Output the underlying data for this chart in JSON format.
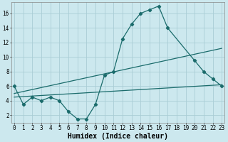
{
  "xlabel": "Humidex (Indice chaleur)",
  "bg_color": "#cce8ee",
  "grid_color": "#aacdd5",
  "line_color": "#1a6b6b",
  "line1_x": [
    0,
    1,
    2,
    3,
    4,
    5,
    6,
    7,
    8,
    9,
    10,
    11,
    12,
    13,
    14,
    15,
    16,
    17,
    20,
    21,
    22,
    23
  ],
  "line1_y": [
    6,
    3.5,
    4.5,
    4,
    4.5,
    4,
    2.5,
    1.5,
    1.5,
    3.5,
    7.5,
    8,
    12.5,
    14.5,
    16,
    16.5,
    17,
    14,
    9.5,
    8,
    7,
    6
  ],
  "line2_x": [
    0,
    23
  ],
  "line2_y": [
    4.5,
    6.2
  ],
  "line3_x": [
    0,
    23
  ],
  "line3_y": [
    5.0,
    11.2
  ],
  "xlim": [
    -0.3,
    23.3
  ],
  "ylim": [
    1.0,
    17.5
  ],
  "yticks": [
    2,
    4,
    6,
    8,
    10,
    12,
    14,
    16
  ],
  "xticks": [
    0,
    1,
    2,
    3,
    4,
    5,
    6,
    7,
    8,
    9,
    10,
    11,
    12,
    13,
    14,
    15,
    16,
    17,
    18,
    19,
    20,
    21,
    22,
    23
  ],
  "title_fontsize": 7.5,
  "label_fontsize": 7,
  "tick_fontsize": 5.5
}
